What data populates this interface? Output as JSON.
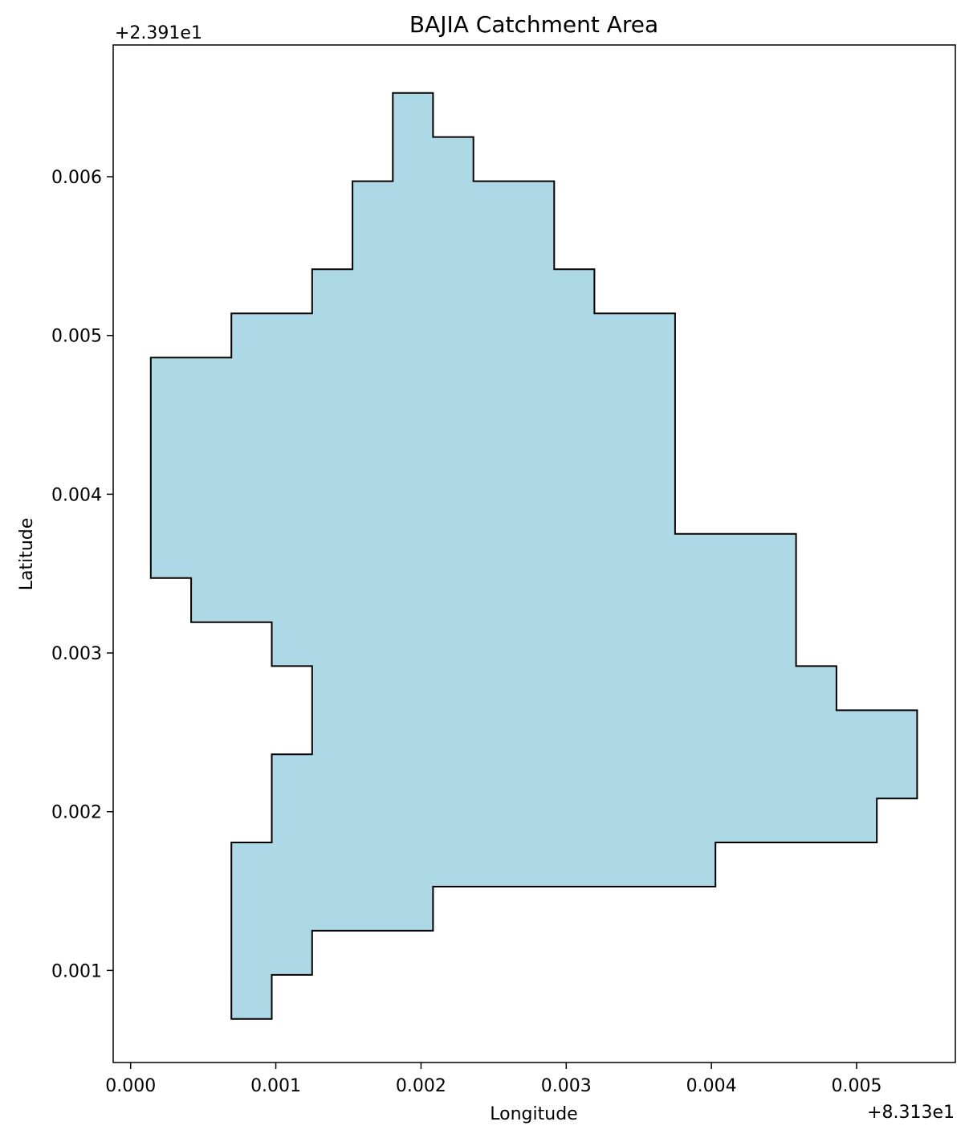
{
  "chart_data": {
    "type": "area",
    "title": "BAJIA Catchment Area",
    "xlabel": "Longitude",
    "ylabel": "Latitude",
    "x_offset_label": "+8.313e1",
    "y_offset_label": "+2.391e1",
    "xlim": [
      -0.00012,
      0.00568
    ],
    "ylim": [
      0.00042,
      0.00683
    ],
    "x_ticks": [
      0.0,
      0.001,
      0.002,
      0.003,
      0.004,
      0.005
    ],
    "x_tick_labels": [
      "0.000",
      "0.001",
      "0.002",
      "0.003",
      "0.004",
      "0.005"
    ],
    "y_ticks": [
      0.001,
      0.002,
      0.003,
      0.004,
      0.005,
      0.006
    ],
    "y_tick_labels": [
      "0.001",
      "0.002",
      "0.003",
      "0.004",
      "0.005",
      "0.006"
    ],
    "grid": false,
    "fill_color": "#add8e6",
    "edge_color": "#000000",
    "polygon": {
      "x": [
        0.000694,
        0.000972,
        0.000972,
        0.00125,
        0.00125,
        0.002083,
        0.002083,
        0.004028,
        0.004028,
        0.005139,
        0.005139,
        0.005417,
        0.005417,
        0.004861,
        0.004861,
        0.004583,
        0.004583,
        0.00375,
        0.00375,
        0.003194,
        0.003194,
        0.002917,
        0.002917,
        0.002361,
        0.002361,
        0.002083,
        0.002083,
        0.001806,
        0.001806,
        0.001528,
        0.001528,
        0.00125,
        0.00125,
        0.000694,
        0.000694,
        0.000139,
        0.000139,
        0.000417,
        0.000417,
        0.000972,
        0.000972,
        0.00125,
        0.00125,
        0.000972,
        0.000972,
        0.000694
      ],
      "y": [
        0.000694,
        0.000694,
        0.000972,
        0.000972,
        0.00125,
        0.00125,
        0.001528,
        0.001528,
        0.001806,
        0.001806,
        0.002083,
        0.002083,
        0.002639,
        0.002639,
        0.002917,
        0.002917,
        0.00375,
        0.00375,
        0.005139,
        0.005139,
        0.005417,
        0.005417,
        0.005972,
        0.005972,
        0.00625,
        0.00625,
        0.006528,
        0.006528,
        0.005972,
        0.005972,
        0.005417,
        0.005417,
        0.005139,
        0.005139,
        0.004861,
        0.004861,
        0.003472,
        0.003472,
        0.003194,
        0.003194,
        0.002917,
        0.002917,
        0.002361,
        0.002361,
        0.001806,
        0.001806
      ]
    }
  }
}
